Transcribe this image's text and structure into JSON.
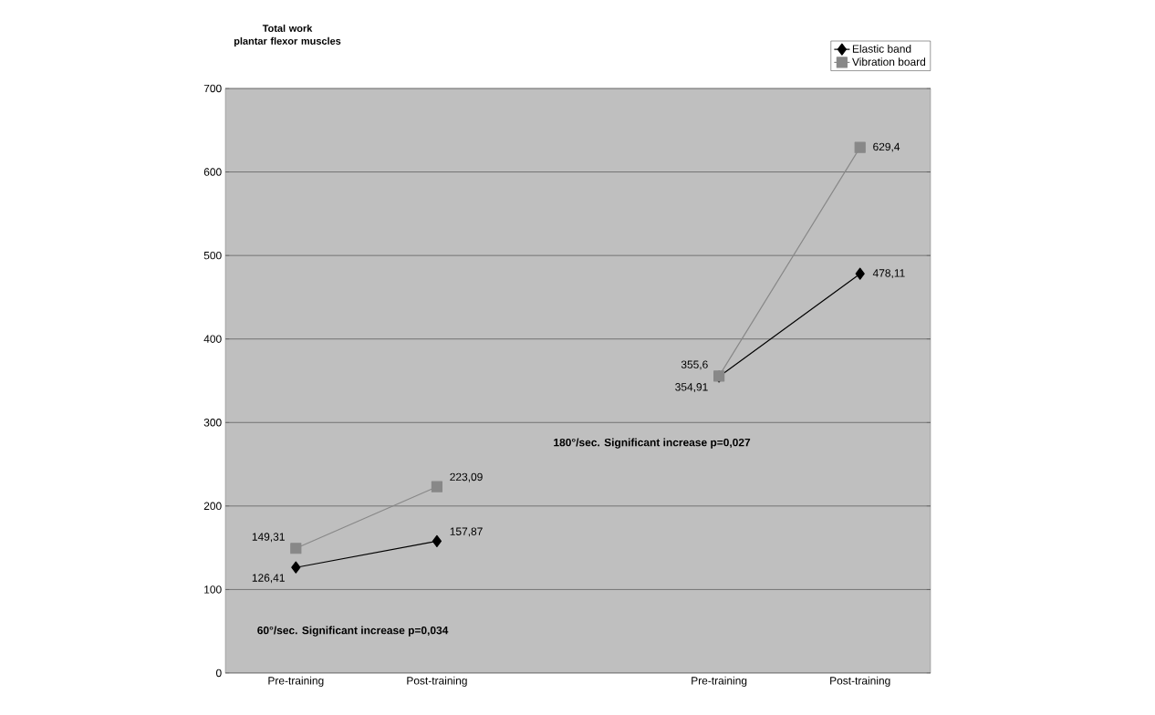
{
  "chart_data": {
    "type": "line",
    "title": "Total work\nplantar flexor muscles",
    "categories": [
      "Pre-training",
      "Post-training",
      null,
      "Pre-training",
      "Post-training"
    ],
    "series": [
      {
        "name": "Elastic band",
        "color": "#000000",
        "marker": "diamond",
        "values": [
          126.41,
          157.87,
          null,
          354.91,
          478.11
        ],
        "value_labels": [
          "126,41",
          "157,87",
          null,
          "354,91",
          "478,11"
        ]
      },
      {
        "name": "Vibration board",
        "color": "#888888",
        "marker": "square",
        "values": [
          149.31,
          223.09,
          null,
          355.6,
          629.4
        ],
        "value_labels": [
          "149,31",
          "223,09",
          null,
          "355,6",
          "629,4"
        ]
      }
    ],
    "ylim": [
      0,
      700
    ],
    "yticks": [
      0,
      100,
      200,
      300,
      400,
      500,
      600,
      700
    ],
    "grid": "y",
    "legend": "top right",
    "annotations": [
      "60°/sec. Significant increase p=0,034",
      "180°/sec. Significant increase p=0,027"
    ]
  }
}
